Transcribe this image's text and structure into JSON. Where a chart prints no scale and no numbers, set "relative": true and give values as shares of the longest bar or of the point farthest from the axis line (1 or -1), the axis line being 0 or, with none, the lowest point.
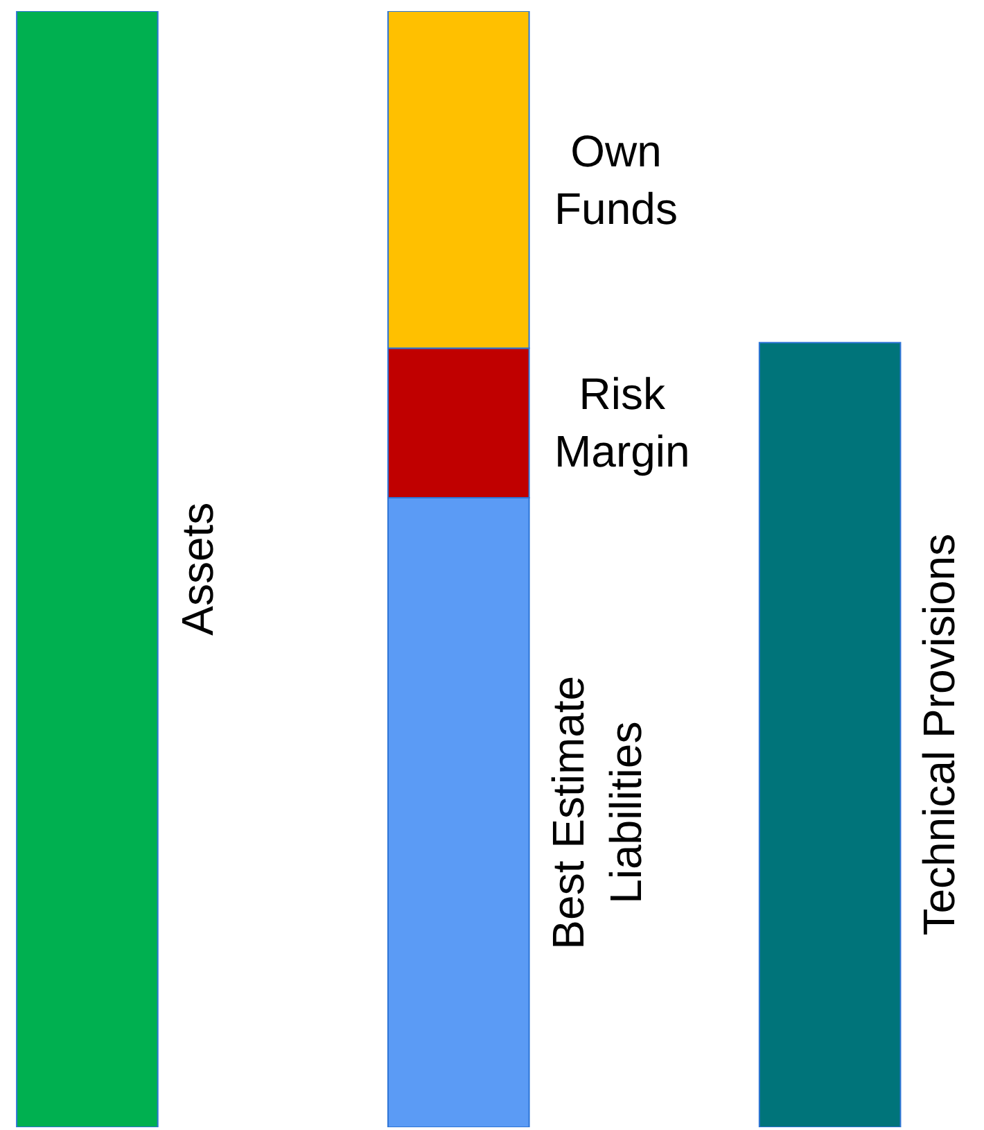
{
  "chart_data": {
    "type": "bar",
    "relative": true,
    "stacked": true,
    "categories": [
      null,
      null,
      null
    ],
    "series": [
      {
        "name": "Assets",
        "color": "#00b050",
        "values": [
          1.0,
          null,
          null
        ]
      },
      {
        "name": "Best Estimate Liabilities",
        "color": "#5b9bf5",
        "values": [
          null,
          0.564,
          null
        ]
      },
      {
        "name": "Risk Margin",
        "color": "#c00000",
        "values": [
          null,
          0.134,
          null
        ]
      },
      {
        "name": "Own Funds",
        "color": "#ffc000",
        "values": [
          null,
          0.302,
          null
        ]
      },
      {
        "name": "Technical Provisions",
        "color": "#00747a",
        "values": [
          null,
          null,
          0.703
        ]
      }
    ]
  }
}
